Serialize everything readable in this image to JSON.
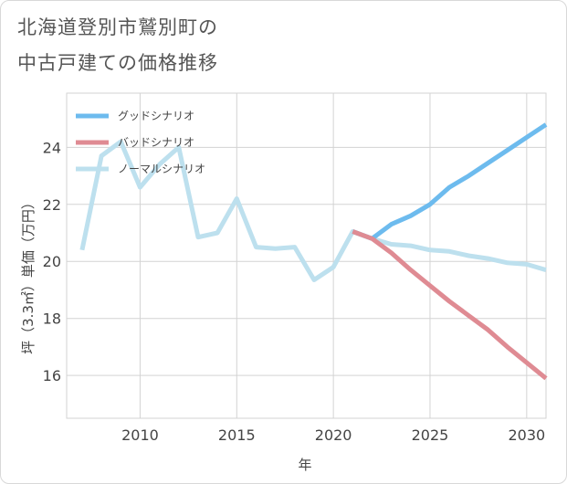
{
  "title_line1": "北海道登別市鷲別町の",
  "title_line2": "中古戸建ての価格推移",
  "chart_data": {
    "type": "line",
    "xlabel": "年",
    "ylabel": "坪（3.3㎡）単価（万円）",
    "xlim": [
      2006.2,
      2031
    ],
    "ylim": [
      14.5,
      25.9
    ],
    "xticks": [
      2010,
      2015,
      2020,
      2025,
      2030
    ],
    "yticks": [
      16,
      18,
      20,
      22,
      24
    ],
    "grid": true,
    "legend_position": "top-left",
    "series": [
      {
        "name": "グッドシナリオ",
        "color": "#6dbbee",
        "x": [
          2021,
          2022,
          2023,
          2024,
          2025,
          2026,
          2027,
          2028,
          2029,
          2030,
          2031
        ],
        "y": [
          21.05,
          20.8,
          21.3,
          21.6,
          22.0,
          22.6,
          23.0,
          23.45,
          23.9,
          24.35,
          24.8
        ]
      },
      {
        "name": "バッドシナリオ",
        "color": "#df8b93",
        "x": [
          2021,
          2022,
          2023,
          2024,
          2025,
          2026,
          2027,
          2028,
          2029,
          2030,
          2031
        ],
        "y": [
          21.05,
          20.8,
          20.3,
          19.7,
          19.15,
          18.6,
          18.1,
          17.6,
          17.0,
          16.45,
          15.9
        ]
      },
      {
        "name": "ノーマルシナリオ",
        "color": "#bde0ee",
        "x": [
          2007,
          2008,
          2009,
          2010,
          2011,
          2012,
          2013,
          2014,
          2015,
          2016,
          2017,
          2018,
          2019,
          2020,
          2021,
          2022,
          2023,
          2024,
          2025,
          2026,
          2027,
          2028,
          2029,
          2030,
          2031
        ],
        "y": [
          20.4,
          23.7,
          24.2,
          22.6,
          23.4,
          24.0,
          20.85,
          21.0,
          22.2,
          20.5,
          20.45,
          20.5,
          19.35,
          19.8,
          21.05,
          20.8,
          20.6,
          20.55,
          20.4,
          20.35,
          20.2,
          20.1,
          19.95,
          19.9,
          19.7
        ]
      }
    ]
  }
}
